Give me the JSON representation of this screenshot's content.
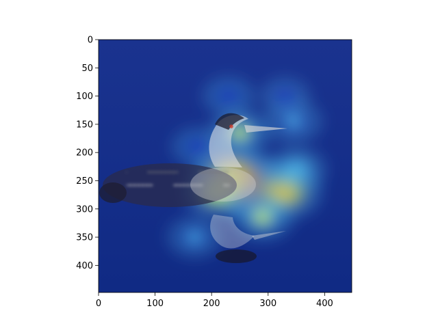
{
  "chart_data": {
    "type": "heatmap",
    "description_visible": "heatmap overlay on image",
    "title": "",
    "xlabel": "",
    "ylabel": "",
    "xlim": [
      0,
      448
    ],
    "ylim": [
      448,
      0
    ],
    "x_ticks": [
      0,
      100,
      200,
      300,
      400
    ],
    "y_ticks": [
      0,
      50,
      100,
      150,
      200,
      250,
      300,
      350,
      400
    ],
    "colormap": "jet",
    "colors": {
      "background": "#0b2a8a",
      "low": "#1f3fbf",
      "mid_low": "#4fb7e8",
      "mid": "#c9ef69",
      "mid_high": "#f2c434",
      "high": "#d84c2f"
    },
    "hotspots": [
      {
        "x": 270,
        "y": 260,
        "value": 1.0
      },
      {
        "x": 235,
        "y": 240,
        "value": 0.85
      },
      {
        "x": 330,
        "y": 270,
        "value": 0.75
      },
      {
        "x": 250,
        "y": 165,
        "value": 0.55
      },
      {
        "x": 210,
        "y": 270,
        "value": 0.65
      },
      {
        "x": 290,
        "y": 315,
        "value": 0.55
      },
      {
        "x": 170,
        "y": 350,
        "value": 0.4
      },
      {
        "x": 345,
        "y": 145,
        "value": 0.45
      },
      {
        "x": 350,
        "y": 230,
        "value": 0.5
      },
      {
        "x": 175,
        "y": 190,
        "value": 0.35
      },
      {
        "x": 230,
        "y": 100,
        "value": 0.35
      },
      {
        "x": 330,
        "y": 100,
        "value": 0.3
      }
    ]
  }
}
